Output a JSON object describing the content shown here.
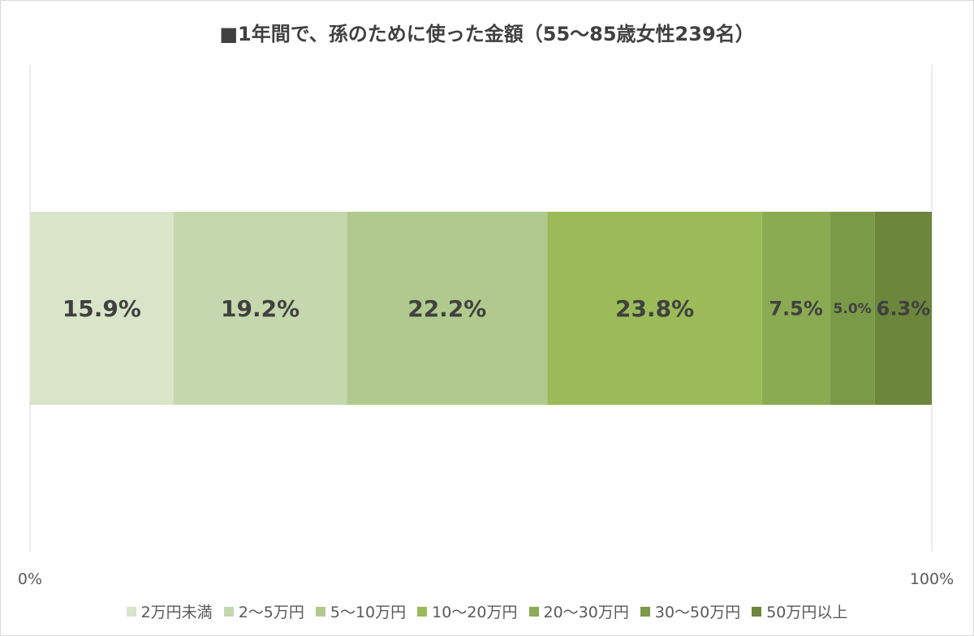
{
  "chart_data": {
    "type": "bar",
    "orientation": "horizontal",
    "stacked": true,
    "title": "■1年間で、孫のために使った金額（55～85歳女性239名）",
    "x_ticks": [
      "0%",
      "100%"
    ],
    "xlim": [
      0,
      100
    ],
    "grid": true,
    "legend_position": "bottom",
    "series": [
      {
        "name": "2万円未満",
        "value": 15.9,
        "label": "15.9%",
        "color": "#d9e4c9"
      },
      {
        "name": "2～5万円",
        "value": 19.2,
        "label": "19.2%",
        "color": "#c5d7ad"
      },
      {
        "name": "5～10万円",
        "value": 22.2,
        "label": "22.2%",
        "color": "#b0ca8d"
      },
      {
        "name": "10～20万円",
        "value": 23.8,
        "label": "23.8%",
        "color": "#9bbb59"
      },
      {
        "name": "20～30万円",
        "value": 7.5,
        "label": "7.5%",
        "color": "#8bab52"
      },
      {
        "name": "30～50万円",
        "value": 5.0,
        "label": "5.0%",
        "color": "#7b9a47"
      },
      {
        "name": "50万円以上",
        "value": 6.3,
        "label": "6.3%",
        "color": "#6c863c"
      }
    ]
  }
}
